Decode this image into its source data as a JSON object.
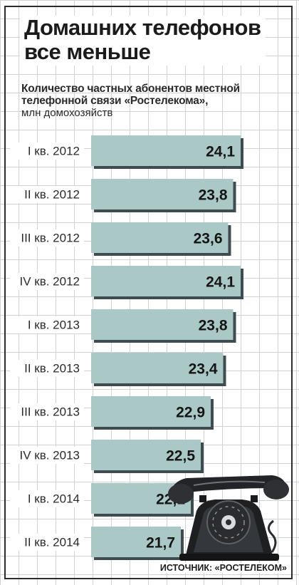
{
  "header": {
    "title_line1": "Домашних телефонов",
    "title_line2": "все меньше",
    "subtitle": "Количество частных абонентов местной телефонной связи «Ростелекома»,",
    "unit": "млн домохозяйств"
  },
  "chart_data": {
    "type": "bar",
    "orientation": "horizontal",
    "categories": [
      "I кв. 2012",
      "II кв. 2012",
      "III кв. 2012",
      "IV кв. 2012",
      "I кв. 2013",
      "II кв. 2013",
      "III кв. 2013",
      "IV кв. 2013",
      "I кв. 2014",
      "II кв. 2014"
    ],
    "values": [
      24.1,
      23.8,
      23.6,
      24.1,
      23.8,
      23.4,
      22.9,
      22.5,
      22.1,
      21.7
    ],
    "value_labels": [
      "24,1",
      "23,8",
      "23,6",
      "24,1",
      "23,8",
      "23,4",
      "22,9",
      "22,5",
      "22,1",
      "21,7"
    ],
    "bar_color": "#a9c8c6",
    "bar_shadow_color": "#3e4b4f",
    "grid": true
  },
  "footer": {
    "source": "ИСТОЧНИК: «РОСТЕЛЕКОМ»"
  },
  "illustration": {
    "icon": "rotary-phone-icon"
  }
}
